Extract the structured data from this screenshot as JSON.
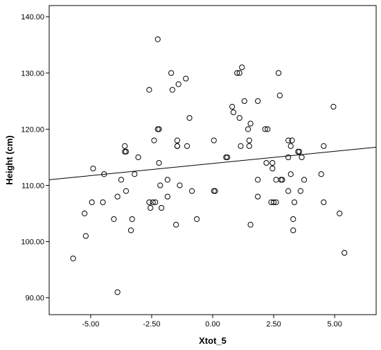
{
  "chart_data": {
    "type": "scatter",
    "title": "",
    "xlabel": "Xtot_5",
    "ylabel": "Height (cm)",
    "xlim": [
      -6.7,
      6.7
    ],
    "ylim": [
      87,
      142
    ],
    "x_ticks": [
      {
        "value": -5,
        "label": "-5.00"
      },
      {
        "value": -2.5,
        "label": "-2.50"
      },
      {
        "value": 0,
        "label": "0.00"
      },
      {
        "value": 2.5,
        "label": "2.50"
      },
      {
        "value": 5,
        "label": "5.00"
      }
    ],
    "y_ticks": [
      {
        "value": 90,
        "label": "90.00"
      },
      {
        "value": 100,
        "label": "100.00"
      },
      {
        "value": 110,
        "label": "110.00"
      },
      {
        "value": 120,
        "label": "120.00"
      },
      {
        "value": 130,
        "label": "130.00"
      },
      {
        "value": 140,
        "label": "140.00"
      }
    ],
    "grid": false,
    "legend": "none",
    "fit_line": {
      "x": [
        -6.7,
        6.7
      ],
      "y": [
        111,
        116.8
      ]
    },
    "points": [
      {
        "x": -5.72,
        "y": 97
      },
      {
        "x": -5.25,
        "y": 105
      },
      {
        "x": -5.2,
        "y": 101
      },
      {
        "x": -4.9,
        "y": 113
      },
      {
        "x": -4.95,
        "y": 107
      },
      {
        "x": -4.5,
        "y": 107
      },
      {
        "x": -4.45,
        "y": 112
      },
      {
        "x": -4.05,
        "y": 104
      },
      {
        "x": -3.9,
        "y": 91
      },
      {
        "x": -3.9,
        "y": 108
      },
      {
        "x": -3.75,
        "y": 111
      },
      {
        "x": -3.6,
        "y": 117
      },
      {
        "x": -3.55,
        "y": 116
      },
      {
        "x": -3.6,
        "y": 116
      },
      {
        "x": -3.55,
        "y": 109
      },
      {
        "x": -3.35,
        "y": 102
      },
      {
        "x": -3.3,
        "y": 104
      },
      {
        "x": -3.2,
        "y": 112
      },
      {
        "x": -3.05,
        "y": 115
      },
      {
        "x": -2.6,
        "y": 127
      },
      {
        "x": -2.6,
        "y": 107
      },
      {
        "x": -2.55,
        "y": 106
      },
      {
        "x": -2.45,
        "y": 107
      },
      {
        "x": -2.35,
        "y": 107
      },
      {
        "x": -2.4,
        "y": 118
      },
      {
        "x": -2.25,
        "y": 136
      },
      {
        "x": -2.25,
        "y": 120
      },
      {
        "x": -2.2,
        "y": 120
      },
      {
        "x": -2.2,
        "y": 114
      },
      {
        "x": -2.15,
        "y": 110
      },
      {
        "x": -2.1,
        "y": 106
      },
      {
        "x": -1.85,
        "y": 111
      },
      {
        "x": -1.85,
        "y": 108
      },
      {
        "x": -1.7,
        "y": 130
      },
      {
        "x": -1.65,
        "y": 127
      },
      {
        "x": -1.5,
        "y": 103
      },
      {
        "x": -1.45,
        "y": 118
      },
      {
        "x": -1.45,
        "y": 117
      },
      {
        "x": -1.45,
        "y": 117
      },
      {
        "x": -1.4,
        "y": 128
      },
      {
        "x": -1.35,
        "y": 110
      },
      {
        "x": -1.1,
        "y": 129
      },
      {
        "x": -1.05,
        "y": 117
      },
      {
        "x": -0.95,
        "y": 122
      },
      {
        "x": -0.85,
        "y": 109
      },
      {
        "x": -0.65,
        "y": 104
      },
      {
        "x": 0.05,
        "y": 118
      },
      {
        "x": 0.05,
        "y": 109
      },
      {
        "x": 0.1,
        "y": 109
      },
      {
        "x": 0.55,
        "y": 115
      },
      {
        "x": 0.6,
        "y": 115
      },
      {
        "x": 0.8,
        "y": 124
      },
      {
        "x": 0.85,
        "y": 123
      },
      {
        "x": 1.0,
        "y": 130
      },
      {
        "x": 1.1,
        "y": 130
      },
      {
        "x": 1.1,
        "y": 122
      },
      {
        "x": 1.15,
        "y": 117
      },
      {
        "x": 1.2,
        "y": 131
      },
      {
        "x": 1.3,
        "y": 125
      },
      {
        "x": 1.45,
        "y": 120
      },
      {
        "x": 1.5,
        "y": 118
      },
      {
        "x": 1.5,
        "y": 117
      },
      {
        "x": 1.55,
        "y": 121
      },
      {
        "x": 1.55,
        "y": 103
      },
      {
        "x": 1.85,
        "y": 125
      },
      {
        "x": 1.85,
        "y": 111
      },
      {
        "x": 1.85,
        "y": 108
      },
      {
        "x": 2.15,
        "y": 120
      },
      {
        "x": 2.25,
        "y": 120
      },
      {
        "x": 2.2,
        "y": 114
      },
      {
        "x": 2.4,
        "y": 107
      },
      {
        "x": 2.45,
        "y": 114
      },
      {
        "x": 2.45,
        "y": 113
      },
      {
        "x": 2.5,
        "y": 107
      },
      {
        "x": 2.6,
        "y": 107
      },
      {
        "x": 2.6,
        "y": 111
      },
      {
        "x": 2.7,
        "y": 130
      },
      {
        "x": 2.75,
        "y": 126
      },
      {
        "x": 2.8,
        "y": 111
      },
      {
        "x": 2.85,
        "y": 111
      },
      {
        "x": 3.1,
        "y": 118
      },
      {
        "x": 3.1,
        "y": 115
      },
      {
        "x": 3.1,
        "y": 109
      },
      {
        "x": 3.2,
        "y": 117
      },
      {
        "x": 3.25,
        "y": 118
      },
      {
        "x": 3.2,
        "y": 112
      },
      {
        "x": 3.3,
        "y": 104
      },
      {
        "x": 3.3,
        "y": 102
      },
      {
        "x": 3.35,
        "y": 107
      },
      {
        "x": 3.5,
        "y": 116
      },
      {
        "x": 3.55,
        "y": 116
      },
      {
        "x": 3.6,
        "y": 109
      },
      {
        "x": 3.65,
        "y": 115
      },
      {
        "x": 3.75,
        "y": 111
      },
      {
        "x": 4.45,
        "y": 112
      },
      {
        "x": 4.55,
        "y": 117
      },
      {
        "x": 4.55,
        "y": 107
      },
      {
        "x": 4.95,
        "y": 124
      },
      {
        "x": 5.2,
        "y": 105
      },
      {
        "x": 5.4,
        "y": 98
      }
    ]
  }
}
